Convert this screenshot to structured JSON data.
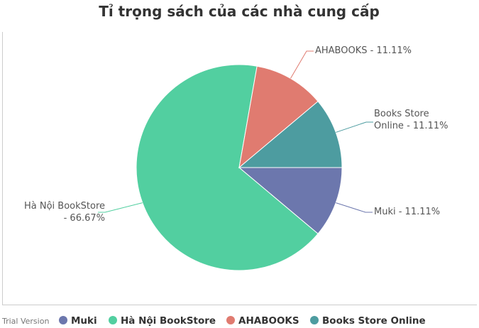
{
  "chart_data": {
    "type": "pie",
    "title": "Tỉ trọng sách của các nhà cung cấp",
    "slices": [
      {
        "name": "Muki",
        "value": 11.11,
        "color": "#6c77ad",
        "label_lines": [
          "Muki - 11.11%"
        ]
      },
      {
        "name": "Hà Nội BookStore",
        "value": 66.67,
        "color": "#52cfa0",
        "label_lines": [
          "Hà Nội BookStore",
          "- 66.67%"
        ]
      },
      {
        "name": "AHABOOKS",
        "value": 11.11,
        "color": "#e07b70",
        "label_lines": [
          "AHABOOKS - 11.11%"
        ]
      },
      {
        "name": "Books Store Online",
        "value": 11.11,
        "color": "#4d9ca0",
        "label_lines": [
          "Books Store",
          "Online - 11.11%"
        ]
      }
    ],
    "legend": {
      "position": "bottom",
      "entries": [
        "Muki",
        "Hà Nội BookStore",
        "AHABOOKS",
        "Books Store Online"
      ]
    },
    "watermark": "Trial Version"
  }
}
